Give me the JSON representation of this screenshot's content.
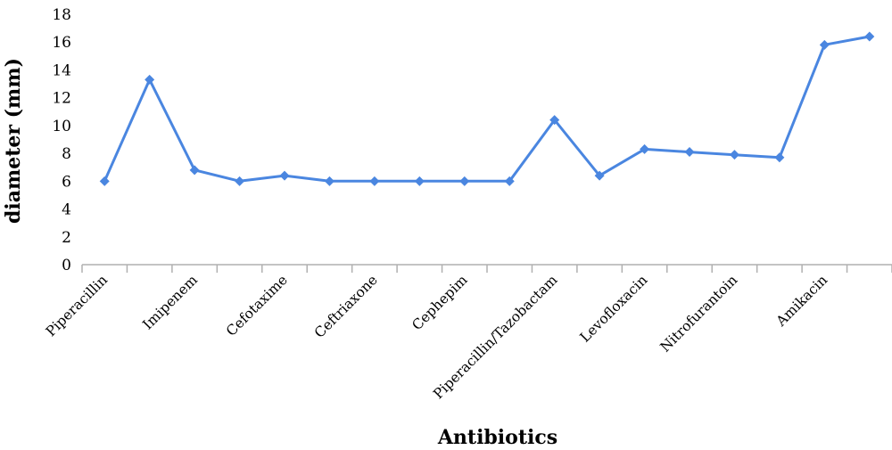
{
  "chart_data": {
    "type": "line",
    "title": "",
    "xlabel": "Antibiotics",
    "ylabel": "diameter (mm)",
    "ylim": [
      0,
      18
    ],
    "yticks": [
      0,
      2,
      4,
      6,
      8,
      10,
      12,
      14,
      16,
      18
    ],
    "categories": [
      "Piperacillin",
      "",
      "Imipenem",
      "",
      "Cefotaxime",
      "",
      "Ceftriaxone",
      "",
      "Cephepim",
      "",
      "Piperacillin/Tazobactam",
      "",
      "Levofloxacin",
      "",
      "Nitrofurantoin",
      "",
      "Amikacin",
      ""
    ],
    "series": [
      {
        "values": [
          6,
          13.3,
          6.8,
          6,
          6.4,
          6,
          6,
          6,
          6,
          6,
          10.4,
          6.4,
          8.3,
          8.1,
          7.9,
          7.7,
          15.8,
          16.4
        ]
      }
    ],
    "grid": false,
    "legend": "none",
    "line_color": "#4a86e0",
    "axis_color": "#b0b0b0"
  }
}
